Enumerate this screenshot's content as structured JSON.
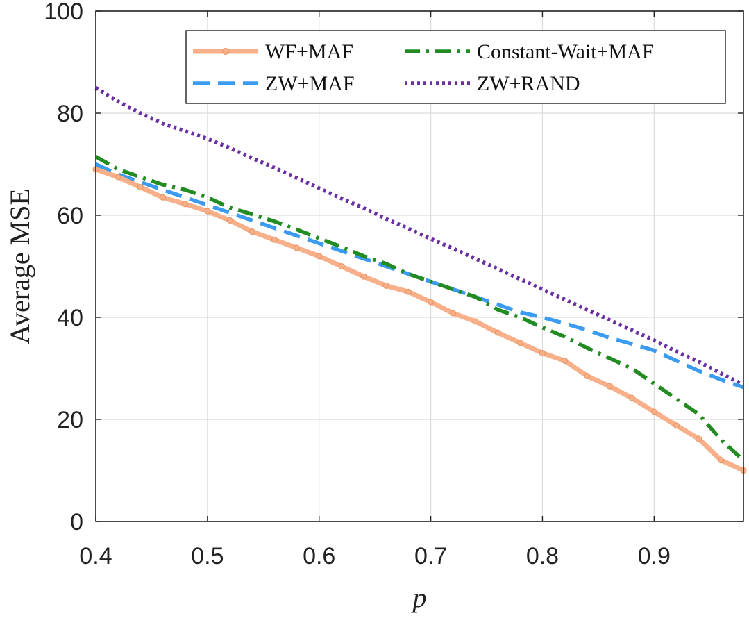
{
  "chart_data": {
    "type": "line",
    "title": "",
    "xlabel": "p",
    "ylabel": "Average MSE",
    "xlim": [
      0.4,
      0.98
    ],
    "ylim": [
      0,
      100
    ],
    "xticks": [
      "0.4",
      "0.5",
      "0.6",
      "0.7",
      "0.8",
      "0.9"
    ],
    "xtick_values": [
      0.4,
      0.5,
      0.6,
      0.7,
      0.8,
      0.9
    ],
    "yticks": [
      "0",
      "20",
      "40",
      "60",
      "80",
      "100"
    ],
    "ytick_values": [
      0,
      20,
      40,
      60,
      80,
      100
    ],
    "grid": true,
    "legend_position": "top-right",
    "legend_columns": 2,
    "x": [
      0.4,
      0.42,
      0.44,
      0.46,
      0.48,
      0.5,
      0.52,
      0.54,
      0.56,
      0.58,
      0.6,
      0.62,
      0.64,
      0.66,
      0.68,
      0.7,
      0.72,
      0.74,
      0.76,
      0.78,
      0.8,
      0.82,
      0.84,
      0.86,
      0.88,
      0.9,
      0.92,
      0.94,
      0.96,
      0.98
    ],
    "series": [
      {
        "name": "WF+MAF",
        "color": "#f7b089",
        "style": "solid-marker",
        "values": [
          69.0,
          67.5,
          65.5,
          63.5,
          62.2,
          60.8,
          59.0,
          56.8,
          55.2,
          53.6,
          52.0,
          50.0,
          48.0,
          46.2,
          45.0,
          43.0,
          40.8,
          39.2,
          37.0,
          35.0,
          33.0,
          31.5,
          28.5,
          26.5,
          24.2,
          21.5,
          18.8,
          16.2,
          12.0,
          10.0
        ]
      },
      {
        "name": "Constant-Wait+MAF",
        "color": "#228b22",
        "style": "dashdot",
        "values": [
          71.5,
          69.0,
          67.5,
          66.0,
          65.0,
          63.5,
          61.5,
          60.2,
          58.8,
          57.2,
          55.5,
          53.8,
          52.0,
          50.5,
          48.5,
          47.0,
          45.5,
          44.0,
          41.5,
          40.0,
          38.0,
          36.2,
          34.0,
          32.0,
          30.0,
          27.0,
          24.0,
          21.0,
          16.0,
          12.0
        ]
      },
      {
        "name": "ZW+MAF",
        "color": "#3b9bf0",
        "style": "dashed",
        "values": [
          70.0,
          68.0,
          66.5,
          65.0,
          63.5,
          62.0,
          60.5,
          59.0,
          57.5,
          56.0,
          54.5,
          53.0,
          51.5,
          50.0,
          48.5,
          47.0,
          45.5,
          44.0,
          42.5,
          41.0,
          40.0,
          38.8,
          37.5,
          36.0,
          34.8,
          33.5,
          31.5,
          29.5,
          27.8,
          26.3
        ]
      },
      {
        "name": "ZW+RAND",
        "color": "#6a2fa3",
        "style": "dotted",
        "values": [
          85.0,
          82.3,
          80.0,
          78.0,
          76.5,
          75.0,
          73.2,
          71.2,
          69.3,
          67.3,
          65.3,
          63.3,
          61.4,
          59.3,
          57.4,
          55.4,
          53.5,
          51.5,
          49.5,
          47.5,
          45.5,
          43.5,
          41.5,
          39.5,
          37.5,
          35.5,
          33.3,
          31.3,
          29.0,
          26.8
        ]
      }
    ]
  }
}
